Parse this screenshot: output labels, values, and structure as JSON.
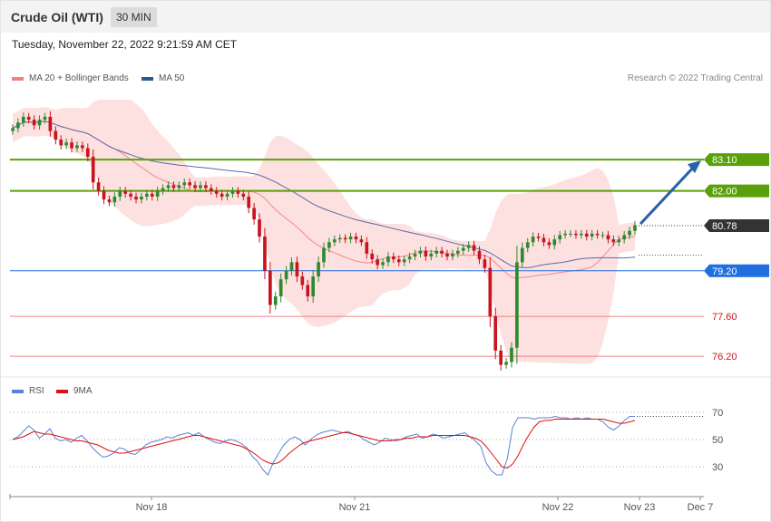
{
  "header": {
    "title": "Crude Oil (WTI)",
    "interval": "30 MIN"
  },
  "datetime": "Tuesday, November 22, 2022 9:21:59 AM CET",
  "legend_main": [
    {
      "label": "MA 20 + Bollinger Bands",
      "color": "#f07f7f"
    },
    {
      "label": "MA 50",
      "color": "#2a5a96"
    }
  ],
  "credit": "Research © 2022 Trading Central",
  "legend_rsi": [
    {
      "label": "RSI",
      "color": "#5b82d6"
    },
    {
      "label": "9MA",
      "color": "#e01010"
    }
  ],
  "chart_data": [
    {
      "type": "candlestick",
      "price_range": [
        75.6,
        85.2
      ],
      "x_ticks": [
        "Nov 18",
        "Nov 21",
        "Nov 22",
        "Nov 23",
        "Dec 7"
      ],
      "levels": [
        {
          "value": 83.1,
          "label": "83.10",
          "kind": "resistance",
          "color": "#5aa00a"
        },
        {
          "value": 82.0,
          "label": "82.00",
          "kind": "resistance",
          "color": "#5aa00a"
        },
        {
          "value": 80.78,
          "label": "80.78",
          "kind": "last-price",
          "color": "#333333"
        },
        {
          "value": 79.2,
          "label": "79.20",
          "kind": "pivot",
          "color": "#1f6fe0"
        },
        {
          "value": 77.6,
          "label": "77.60",
          "kind": "support",
          "color": "#f08080"
        },
        {
          "value": 76.2,
          "label": "76.20",
          "kind": "support",
          "color": "#f08080"
        }
      ],
      "close_series": [
        84.2,
        84.4,
        84.6,
        84.5,
        84.3,
        84.5,
        84.6,
        84.1,
        83.8,
        83.6,
        83.7,
        83.5,
        83.6,
        83.5,
        83.2,
        82.3,
        82.0,
        81.7,
        81.6,
        81.8,
        82.0,
        81.9,
        81.8,
        81.7,
        81.8,
        81.9,
        81.8,
        82.0,
        82.1,
        82.2,
        82.1,
        82.2,
        82.3,
        82.2,
        82.1,
        82.2,
        82.1,
        82.0,
        81.9,
        81.8,
        81.9,
        82.0,
        81.9,
        81.8,
        81.4,
        81.0,
        80.4,
        79.2,
        78.0,
        78.3,
        78.9,
        79.2,
        79.5,
        79.0,
        78.7,
        78.3,
        79.0,
        79.5,
        80.0,
        80.2,
        80.3,
        80.35,
        80.3,
        80.4,
        80.3,
        80.2,
        79.8,
        79.6,
        79.4,
        79.5,
        79.7,
        79.6,
        79.5,
        79.6,
        79.7,
        79.8,
        79.9,
        79.7,
        79.8,
        79.9,
        79.8,
        79.7,
        79.8,
        79.9,
        80.0,
        80.1,
        79.9,
        79.6,
        79.3,
        77.6,
        76.4,
        75.9,
        76.0,
        76.5,
        79.5,
        80.0,
        80.2,
        80.4,
        80.35,
        80.2,
        80.1,
        80.3,
        80.45,
        80.5,
        80.5,
        80.45,
        80.5,
        80.4,
        80.5,
        80.45,
        80.45,
        80.3,
        80.2,
        80.3,
        80.45,
        80.6,
        80.8
      ],
      "last_close": 80.78,
      "forecast_target": 83.1
    },
    {
      "type": "line",
      "name": "RSI panel",
      "y_ticks": [
        70,
        50,
        30
      ],
      "series": [
        {
          "name": "RSI",
          "values": [
            50,
            52,
            56,
            60,
            57,
            51,
            54,
            58,
            51,
            49,
            50,
            48,
            51,
            53,
            49,
            44,
            40,
            37,
            38,
            40,
            44,
            43,
            40,
            39,
            42,
            46,
            48,
            49,
            50,
            52,
            51,
            53,
            54,
            55,
            53,
            55,
            52,
            50,
            48,
            47,
            49,
            50,
            49,
            47,
            44,
            38,
            34,
            28,
            24,
            33,
            40,
            46,
            50,
            52,
            50,
            46,
            50,
            53,
            55,
            56,
            57,
            56,
            55,
            56,
            54,
            53,
            50,
            48,
            46,
            48,
            51,
            50,
            49,
            50,
            52,
            53,
            54,
            51,
            52,
            54,
            53,
            51,
            52,
            53,
            54,
            55,
            52,
            49,
            45,
            33,
            27,
            24,
            24,
            36,
            59,
            66,
            66,
            66,
            65,
            66,
            66,
            66,
            67,
            66,
            66,
            65,
            66,
            65,
            66,
            65,
            65,
            63,
            59,
            57,
            60,
            64,
            67,
            67
          ]
        },
        {
          "name": "9MA",
          "values": [
            50,
            51,
            52,
            54,
            56,
            55,
            54,
            54,
            53,
            52,
            51,
            50,
            49,
            49,
            48,
            47,
            46,
            44,
            42,
            41,
            40,
            40,
            41,
            42,
            43,
            44,
            45,
            46,
            47,
            48,
            49,
            50,
            51,
            52,
            53,
            53,
            52,
            51,
            50,
            49,
            48,
            47,
            46,
            45,
            43,
            41,
            38,
            35,
            33,
            32,
            33,
            36,
            40,
            43,
            46,
            48,
            49,
            50,
            51,
            52,
            53,
            54,
            55,
            55,
            54,
            53,
            52,
            51,
            50,
            49,
            49,
            49,
            50,
            50,
            51,
            51,
            52,
            52,
            52,
            53,
            53,
            53,
            53,
            53,
            53,
            53,
            52,
            51,
            49,
            45,
            40,
            35,
            30,
            29,
            32,
            38,
            46,
            53,
            59,
            63,
            64,
            64,
            65,
            65,
            65,
            65,
            65,
            65,
            65,
            65,
            65,
            65,
            64,
            63,
            62,
            62,
            63,
            64
          ]
        }
      ]
    }
  ]
}
